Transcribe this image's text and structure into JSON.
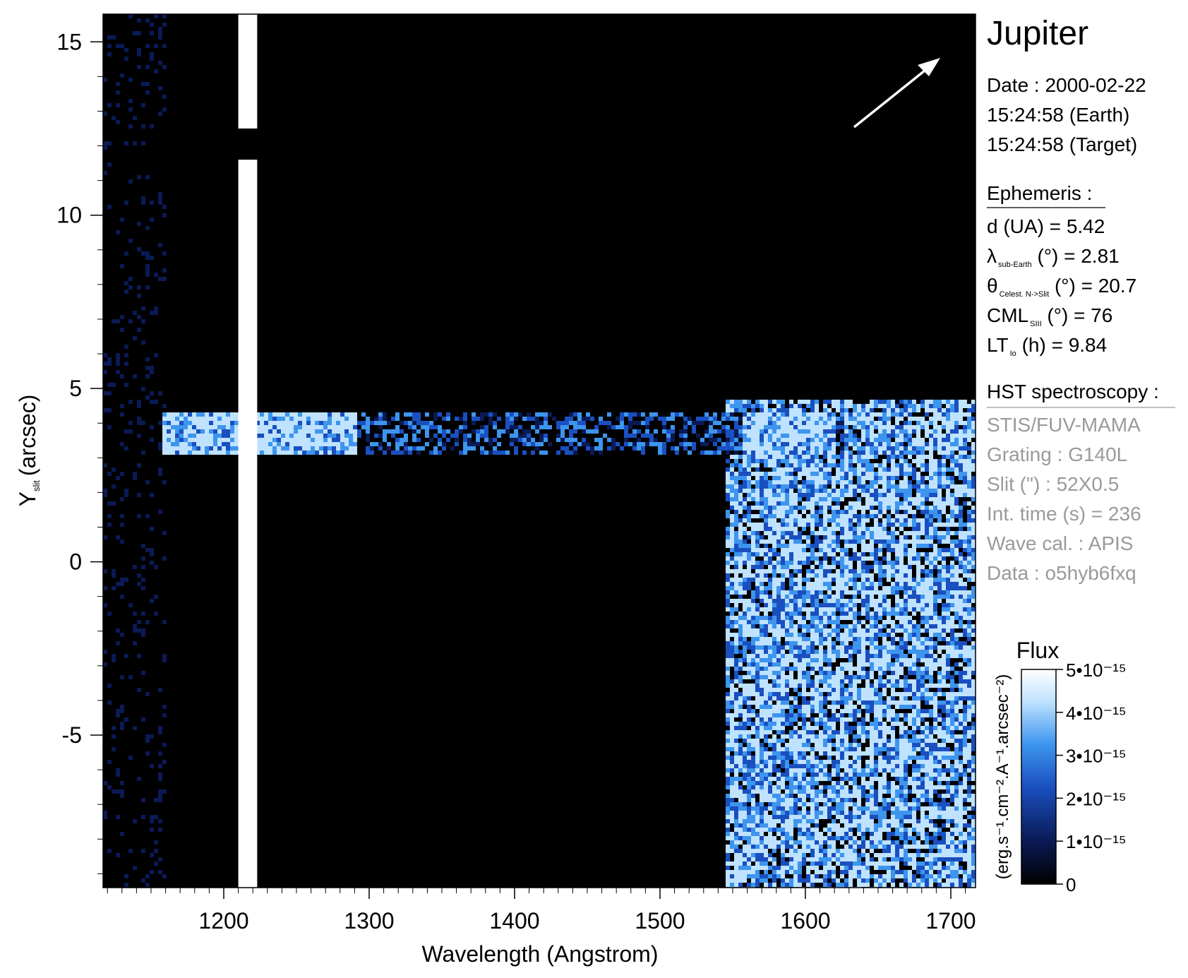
{
  "chart_data": {
    "type": "heatmap",
    "title": "Jupiter",
    "xlabel": "Wavelength (Angstrom)",
    "ylabel_main": "Y",
    "ylabel_sub": "slit",
    "ylabel_unit": "(arcsec)",
    "xlim": [
      1117,
      1717
    ],
    "ylim": [
      -9.4,
      15.8
    ],
    "x_ticks": [
      1200,
      1300,
      1400,
      1500,
      1600,
      1700
    ],
    "x_tick_labels": [
      "1200",
      "1300",
      "1400",
      "1500",
      "1600",
      "1700"
    ],
    "x_minor_step": 10,
    "y_ticks": [
      15,
      10,
      5,
      0,
      -5
    ],
    "y_tick_labels": [
      "15",
      "10",
      "5",
      "0",
      "-5"
    ],
    "y_minor_step": 1,
    "grid": false,
    "features": [
      {
        "kind": "vertical_band",
        "x_range": [
          1210,
          1223
        ],
        "y_gap": [
          11.6,
          12.5
        ],
        "level": 1.0
      },
      {
        "kind": "horizontal_band",
        "y_range": [
          3.1,
          4.4
        ],
        "x_range": [
          1155,
          1625
        ],
        "level": 0.55
      },
      {
        "kind": "bright_blob",
        "x_range": [
          1155,
          1290
        ],
        "y_range": [
          3.1,
          4.4
        ],
        "level": 1.0
      },
      {
        "kind": "bright_blob",
        "x_range": [
          1555,
          1620
        ],
        "y_range": [
          3.1,
          4.4
        ],
        "level": 0.95
      },
      {
        "kind": "bright_region",
        "x_range": [
          1545,
          1717
        ],
        "y_range": [
          -9.4,
          4.7
        ],
        "level": 0.85
      }
    ],
    "colorbar": {
      "title": "Flux",
      "unit_label": "(erg.s⁻¹.cm⁻².A⁻¹.arcsec⁻²)",
      "range": [
        0,
        5e-15
      ],
      "tick_labels": [
        "5•10⁻¹⁵",
        "4•10⁻¹⁵",
        "3•10⁻¹⁵",
        "2•10⁻¹⁵",
        "1•10⁻¹⁵",
        "0"
      ],
      "tick_values": [
        5e-15,
        4e-15,
        3e-15,
        2e-15,
        1e-15,
        0
      ],
      "colors": [
        "#000000",
        "#0a1a55",
        "#1a4fc0",
        "#3d95ee",
        "#bfe2ff",
        "#ffffff"
      ]
    }
  },
  "info": {
    "planet": "Jupiter",
    "date_line": "Date : 2000-02-22",
    "time_earth": "15:24:58 (Earth)",
    "time_target": "15:24:58 (Target)",
    "ephemeris_header": "Ephemeris :",
    "ephemeris": [
      {
        "sym": "d (UA)",
        "sub": "",
        "rest": "     = 5.42"
      },
      {
        "sym": "λ",
        "sub": "sub-Earth",
        "rest": " (°)  = 2.81"
      },
      {
        "sym": "θ",
        "sub": "Celest. N->Slit",
        "rest": " (°) = 20.7"
      },
      {
        "sym": "CML",
        "sub": "SIII",
        "rest": " (°) = 76"
      },
      {
        "sym": "LT",
        "sub": "Io",
        "rest": " (h) = 9.84"
      }
    ],
    "hst_header": "HST spectroscopy :",
    "hst": [
      "STIS/FUV-MAMA",
      "Grating : G140L",
      "Slit (\") : 52X0.5",
      "Int. time (s) = 236",
      "Wave cal. : APIS",
      "Data : o5hyb6fxq"
    ]
  }
}
